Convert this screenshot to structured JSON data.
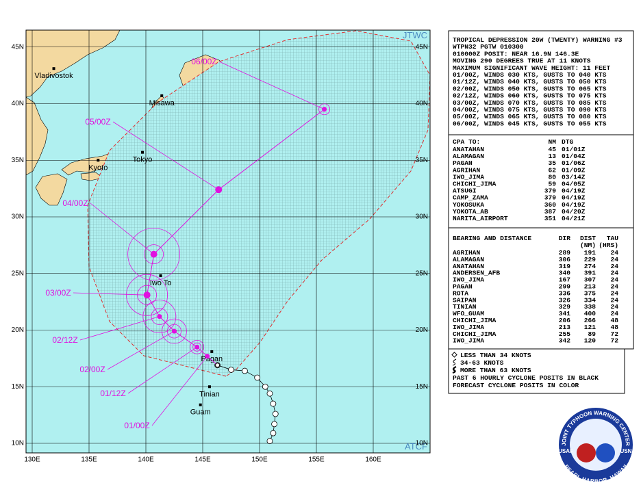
{
  "map": {
    "corner_top": "JTWC",
    "corner_bottom": "ATCF",
    "lon_ticks": [
      {
        "value": 130,
        "label": "130E"
      },
      {
        "value": 135,
        "label": "135E"
      },
      {
        "value": 140,
        "label": "140E"
      },
      {
        "value": 145,
        "label": "145E"
      },
      {
        "value": 150,
        "label": "150E"
      },
      {
        "value": 155,
        "label": "155E"
      },
      {
        "value": 160,
        "label": "160E"
      }
    ],
    "lat_ticks": [
      {
        "value": 10,
        "label": "10N"
      },
      {
        "value": 15,
        "label": "15N"
      },
      {
        "value": 20,
        "label": "20N"
      },
      {
        "value": 25,
        "label": "25N"
      },
      {
        "value": 30,
        "label": "30N"
      },
      {
        "value": 35,
        "label": "35N"
      },
      {
        "value": 40,
        "label": "40N"
      },
      {
        "value": 45,
        "label": "45N"
      }
    ],
    "places": [
      {
        "name": "Vladivostok",
        "lon": 131.9,
        "lat": 43.1
      },
      {
        "name": "Misawa",
        "lon": 141.4,
        "lat": 40.7
      },
      {
        "name": "Kyoto",
        "lon": 135.8,
        "lat": 35.0
      },
      {
        "name": "Tokyo",
        "lon": 139.7,
        "lat": 35.7
      },
      {
        "name": "Iwo To",
        "lon": 141.3,
        "lat": 24.8
      },
      {
        "name": "Pagan",
        "lon": 145.8,
        "lat": 18.1
      },
      {
        "name": "Tinian",
        "lon": 145.6,
        "lat": 15.0
      },
      {
        "name": "Guam",
        "lon": 144.8,
        "lat": 13.4
      }
    ],
    "current": {
      "lon": 146.3,
      "lat": 16.9
    },
    "forecast_track": [
      {
        "label": "01/00Z",
        "lon": 145.4,
        "lat": 17.7
      },
      {
        "label": "01/12Z",
        "lon": 144.5,
        "lat": 18.5
      },
      {
        "label": "02/00Z",
        "lon": 142.5,
        "lat": 19.9
      },
      {
        "label": "02/12Z",
        "lon": 141.2,
        "lat": 21.2
      },
      {
        "label": "03/00Z",
        "lon": 140.1,
        "lat": 23.1
      },
      {
        "label": "04/00Z",
        "lon": 140.7,
        "lat": 26.7
      },
      {
        "label": "05/00Z",
        "lon": 146.4,
        "lat": 32.4
      },
      {
        "label": "06/00Z",
        "lon": 155.7,
        "lat": 39.5
      }
    ],
    "past_track": {
      "lon": [
        146.3,
        147.5,
        148.7,
        149.8,
        150.5,
        150.9,
        151.2,
        151.4,
        151.3,
        151.2,
        150.9
      ],
      "lat": [
        16.9,
        16.5,
        16.4,
        15.8,
        15.0,
        14.4,
        13.5,
        12.6,
        11.7,
        10.9,
        10.2
      ]
    }
  },
  "warning": {
    "header": [
      "TROPICAL DEPRESSION 20W (TWENTY) WARNING #3",
      "WTPN32 PGTW 010300",
      "010000Z POSIT: NEAR 16.9N 146.3E",
      "MOVING 290 DEGREES TRUE AT 11 KNOTS",
      "MAXIMUM SIGNIFICANT WAVE HEIGHT: 11 FEET",
      "01/00Z, WINDS 030 KTS, GUSTS TO 040 KTS",
      "01/12Z, WINDS 040 KTS, GUSTS TO 050 KTS",
      "02/00Z, WINDS 050 KTS, GUSTS TO 065 KTS",
      "02/12Z, WINDS 060 KTS, GUSTS TO 075 KTS",
      "03/00Z, WINDS 070 KTS, GUSTS TO 085 KTS",
      "04/00Z, WINDS 075 KTS, GUSTS TO 090 KTS",
      "05/00Z, WINDS 065 KTS, GUSTS TO 080 KTS",
      "06/00Z, WINDS 045 KTS, GUSTS TO 055 KTS"
    ],
    "cpa": {
      "columns": [
        "CPA TO:",
        "NM",
        "DTG"
      ],
      "rows": [
        [
          "ANATAHAN",
          "45",
          "01/01Z"
        ],
        [
          "ALAMAGAN",
          "13",
          "01/04Z"
        ],
        [
          "PAGAN",
          "35",
          "01/06Z"
        ],
        [
          "AGRIHAN",
          "62",
          "01/09Z"
        ],
        [
          "IWO_JIMA",
          "80",
          "03/14Z"
        ],
        [
          "CHICHI_JIMA",
          "59",
          "04/05Z"
        ],
        [
          "ATSUGI",
          "379",
          "04/19Z"
        ],
        [
          "CAMP_ZAMA",
          "379",
          "04/19Z"
        ],
        [
          "YOKOSUKA",
          "360",
          "04/19Z"
        ],
        [
          "YOKOTA_AB",
          "387",
          "04/20Z"
        ],
        [
          "NARITA_AIRPORT",
          "351",
          "04/21Z"
        ]
      ]
    },
    "bearing": {
      "columns": [
        "BEARING AND DISTANCE",
        "DIR",
        "DIST",
        "TAU"
      ],
      "units": [
        "(NM)",
        "(HRS)"
      ],
      "rows": [
        [
          "AGRIHAN",
          "289",
          "191",
          "24"
        ],
        [
          "ALAMAGAN",
          "306",
          "229",
          "24"
        ],
        [
          "ANATAHAN",
          "319",
          "274",
          "24"
        ],
        [
          "ANDERSEN_AFB",
          "340",
          "391",
          "24"
        ],
        [
          "IWO_JIMA",
          "167",
          "307",
          "24"
        ],
        [
          "PAGAN",
          "299",
          "213",
          "24"
        ],
        [
          "ROTA",
          "336",
          "375",
          "24"
        ],
        [
          "SAIPAN",
          "326",
          "334",
          "24"
        ],
        [
          "TINIAN",
          "329",
          "338",
          "24"
        ],
        [
          "WFO_GUAM",
          "341",
          "400",
          "24"
        ],
        [
          "CHICHI_JIMA",
          "206",
          "266",
          "48"
        ],
        [
          "IWO_JIMA",
          "213",
          "121",
          "48"
        ],
        [
          "CHICHI_JIMA",
          "255",
          "89",
          "72"
        ],
        [
          "IWO_JIMA",
          "342",
          "120",
          "72"
        ]
      ]
    }
  },
  "legend": {
    "symbols": [
      "LESS THAN 34 KNOTS",
      "34-63 KNOTS",
      "MORE THAN 63 KNOTS"
    ],
    "notes": [
      "PAST 6 HOURLY CYCLONE POSITS IN BLACK",
      "FORECAST CYCLONE POSITS IN COLOR"
    ]
  },
  "logo": {
    "title": "JOINT TYPHOON WARNING CENTER",
    "location": "PEARL HARBOR, HAWAII",
    "left": "USAF",
    "right": "USN"
  }
}
